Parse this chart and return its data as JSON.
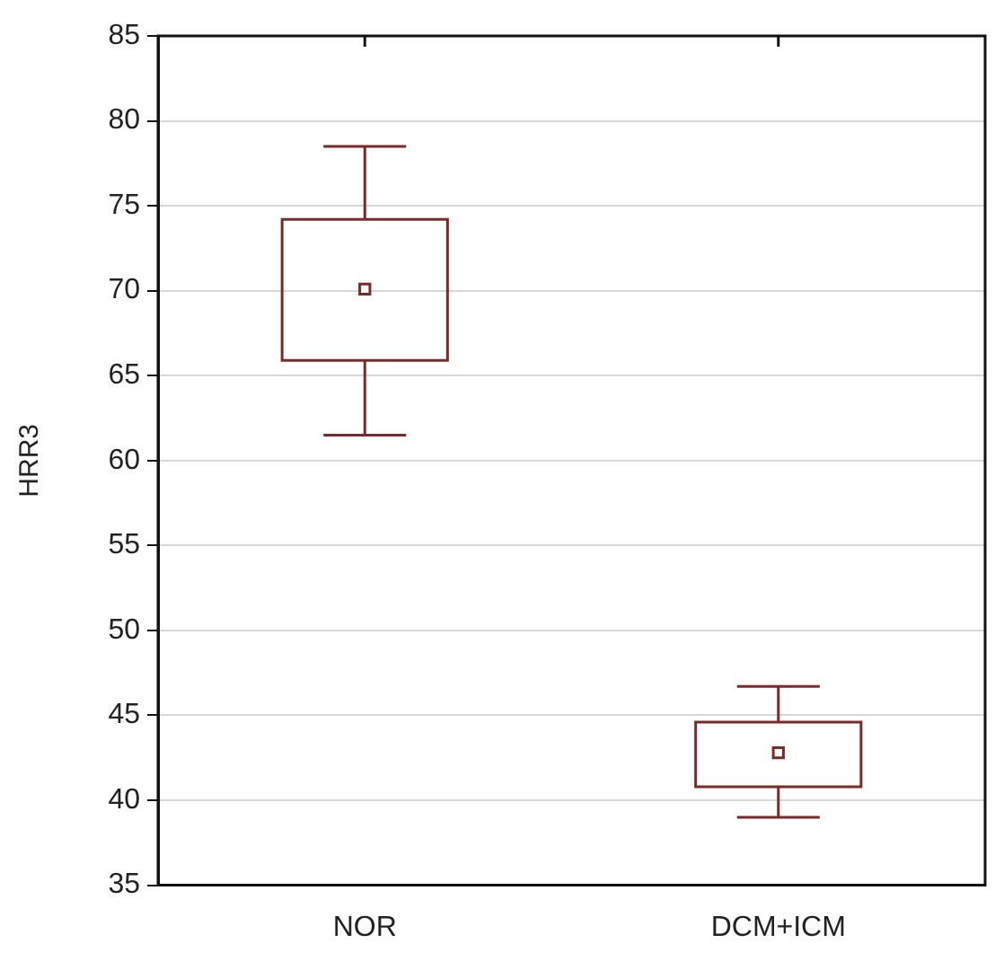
{
  "chart_data": {
    "type": "box",
    "ylabel": "HRR3",
    "categories": [
      "NOR",
      "DCM+ICM"
    ],
    "boxes": [
      {
        "low": 61.5,
        "q1": 65.9,
        "median": 70.1,
        "q3": 74.2,
        "high": 78.5
      },
      {
        "low": 39.0,
        "q1": 40.8,
        "median": 42.8,
        "q3": 44.6,
        "high": 46.7
      }
    ],
    "color": "#7b2a2a",
    "ylim": [
      35,
      85
    ],
    "yticks": [
      35,
      40,
      45,
      50,
      55,
      60,
      65,
      70,
      75,
      80,
      85
    ],
    "grid": "y",
    "marker": "square"
  }
}
